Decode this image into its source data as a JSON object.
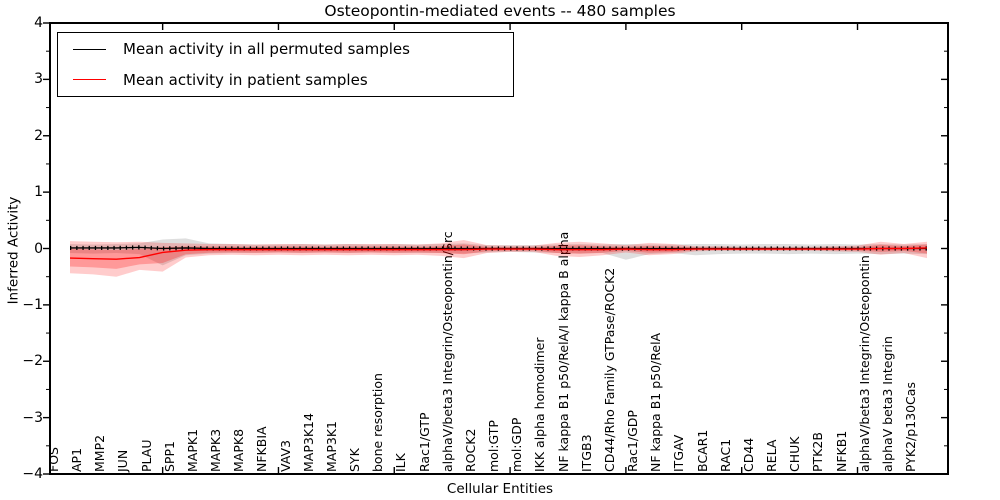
{
  "figure": {
    "title": "Osteopontin-mediated events -- 480 samples",
    "xlabel": "Cellular Entities",
    "ylabel": "Inferred Activity"
  },
  "legend": {
    "entries": [
      {
        "label": "Mean activity in all permuted samples",
        "color": "#000000"
      },
      {
        "label": "Mean activity in patient samples",
        "color": "#ff0000"
      }
    ]
  },
  "chart_data": {
    "type": "line",
    "title": "Osteopontin-mediated events -- 480 samples",
    "xlabel": "Cellular Entities",
    "ylabel": "Inferred Activity",
    "ylim": [
      -4,
      4
    ],
    "grid": false,
    "legend_position": "upper left",
    "y_tick_values": [
      4,
      3,
      2,
      1,
      0,
      -1,
      -2,
      -3,
      -4
    ],
    "y_tick_labels": [
      "4",
      "3",
      "2",
      "1",
      "0",
      "−1",
      "−2",
      "−3",
      "−4"
    ],
    "x_major_tick_indices": [
      4,
      9,
      14,
      19,
      24,
      29,
      34
    ],
    "inner_band_fraction": 0.55,
    "categories": [
      "FOS",
      "AP1",
      "MMP2",
      "JUN",
      "PLAU",
      "SPP1",
      "MAPK1",
      "MAPK3",
      "MAPK8",
      "NFKBIA",
      "VAV3",
      "MAP3K14",
      "MAP3K1",
      "SYK",
      "bone resorption",
      "ILK",
      "Rac1/GTP",
      "alphaV/beta3 Integrin/Osteopontin/Src",
      "ROCK2",
      "mol:GTP",
      "mol:GDP",
      "IKK alpha homodimer",
      "NF kappa B1 p50/RelA/I kappa B alpha",
      "ITGB3",
      "CD44/Rho Family GTPase/ROCK2",
      "Rac1/GDP",
      "NF kappa B1 p50/RelA",
      "ITGAV",
      "BCAR1",
      "RAC1",
      "CD44",
      "RELA",
      "CHUK",
      "PTK2B",
      "NFKB1",
      "alphaV/beta3 Integrin/Osteopontin",
      "alphaV beta3 Integrin",
      "PYK2/p130Cas"
    ],
    "series": [
      {
        "name": "Mean activity in all permuted samples",
        "color": "#000000",
        "band_style": "gray shaded region",
        "values": [
          0.01,
          0.01,
          0.01,
          0.02,
          0.0,
          0.01,
          0.0,
          0.0,
          0.0,
          0.0,
          0.0,
          0.0,
          0.0,
          0.0,
          0.0,
          0.0,
          0.0,
          0.0,
          0.0,
          0.0,
          0.0,
          0.0,
          0.0,
          0.0,
          0.0,
          0.0,
          0.0,
          0.0,
          0.0,
          0.0,
          0.0,
          0.0,
          0.0,
          0.0,
          0.0,
          0.0,
          0.0,
          0.0
        ],
        "band_lo": [
          -0.08,
          -0.09,
          -0.08,
          -0.1,
          -0.3,
          -0.12,
          -0.09,
          -0.08,
          -0.08,
          -0.07,
          -0.08,
          -0.07,
          -0.08,
          -0.07,
          -0.08,
          -0.08,
          -0.08,
          -0.09,
          -0.07,
          -0.06,
          -0.07,
          -0.08,
          -0.09,
          -0.08,
          -0.2,
          -0.1,
          -0.08,
          -0.12,
          -0.1,
          -0.09,
          -0.09,
          -0.1,
          -0.09,
          -0.1,
          -0.09,
          -0.1,
          -0.09,
          -0.1
        ],
        "band_hi": [
          0.08,
          0.07,
          0.08,
          0.09,
          0.16,
          0.18,
          0.09,
          0.08,
          0.07,
          0.07,
          0.08,
          0.07,
          0.08,
          0.07,
          0.08,
          0.07,
          0.08,
          0.09,
          0.06,
          0.06,
          0.06,
          0.07,
          0.08,
          0.07,
          0.08,
          0.07,
          0.07,
          0.08,
          0.08,
          0.07,
          0.08,
          0.08,
          0.07,
          0.08,
          0.07,
          0.08,
          0.07,
          0.08
        ]
      },
      {
        "name": "Mean activity in patient samples",
        "color": "#ff0000",
        "band_style": "red shaded region",
        "values": [
          -0.17,
          -0.18,
          -0.19,
          -0.16,
          -0.07,
          -0.03,
          -0.02,
          -0.02,
          -0.02,
          -0.02,
          -0.02,
          -0.02,
          -0.02,
          -0.02,
          -0.02,
          -0.02,
          -0.02,
          -0.02,
          -0.01,
          -0.01,
          -0.01,
          -0.02,
          -0.02,
          -0.02,
          -0.01,
          -0.02,
          -0.02,
          -0.01,
          -0.01,
          -0.01,
          -0.01,
          -0.01,
          -0.01,
          -0.01,
          -0.01,
          0.0,
          0.0,
          0.01
        ],
        "band_lo": [
          -0.44,
          -0.46,
          -0.5,
          -0.38,
          -0.41,
          -0.16,
          -0.12,
          -0.11,
          -0.12,
          -0.11,
          -0.12,
          -0.11,
          -0.12,
          -0.11,
          -0.12,
          -0.11,
          -0.13,
          -0.17,
          -0.08,
          -0.06,
          -0.06,
          -0.13,
          -0.15,
          -0.12,
          -0.07,
          -0.12,
          -0.1,
          -0.05,
          -0.04,
          -0.04,
          -0.04,
          -0.04,
          -0.04,
          -0.05,
          -0.06,
          -0.11,
          -0.08,
          -0.17
        ],
        "band_hi": [
          0.13,
          0.12,
          0.11,
          0.12,
          0.1,
          0.09,
          0.08,
          0.08,
          0.07,
          0.08,
          0.08,
          0.07,
          0.08,
          0.08,
          0.08,
          0.07,
          0.09,
          0.15,
          0.06,
          0.05,
          0.05,
          0.1,
          0.12,
          0.09,
          0.06,
          0.1,
          0.08,
          0.04,
          0.04,
          0.03,
          0.03,
          0.03,
          0.03,
          0.04,
          0.05,
          0.12,
          0.08,
          0.12
        ]
      }
    ]
  }
}
